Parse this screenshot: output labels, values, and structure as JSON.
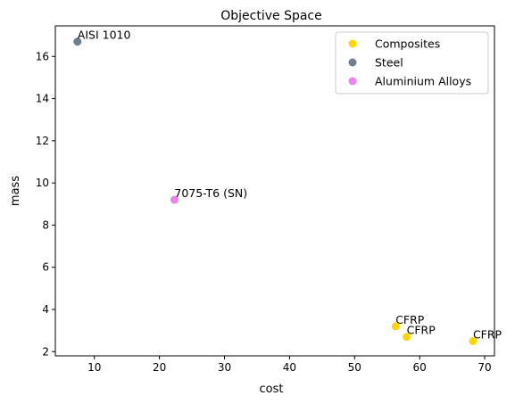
{
  "chart_data": {
    "type": "scatter",
    "title": "Objective Space",
    "xlabel": "cost",
    "ylabel": "mass",
    "xlim": [
      4.0,
      71.5
    ],
    "ylim": [
      1.8,
      17.45
    ],
    "xticks": [
      10,
      20,
      30,
      40,
      50,
      60,
      70
    ],
    "yticks": [
      2,
      4,
      6,
      8,
      10,
      12,
      14,
      16
    ],
    "grid": false,
    "legend_position": "top-right",
    "series": [
      {
        "name": "Composites",
        "color": "#FFD700",
        "points": [
          {
            "x": 56.3,
            "y": 3.2,
            "label": "CFRP"
          },
          {
            "x": 58.0,
            "y": 2.7,
            "label": "CFRP"
          },
          {
            "x": 68.2,
            "y": 2.5,
            "label": "CFRP"
          }
        ]
      },
      {
        "name": "Steel",
        "color": "#708090",
        "points": [
          {
            "x": 7.4,
            "y": 16.7,
            "label": "AISI 1010"
          }
        ]
      },
      {
        "name": "Aluminium Alloys",
        "color": "#EE82EE",
        "points": [
          {
            "x": 22.3,
            "y": 9.2,
            "label": "7075-T6 (SN)"
          }
        ]
      }
    ]
  }
}
